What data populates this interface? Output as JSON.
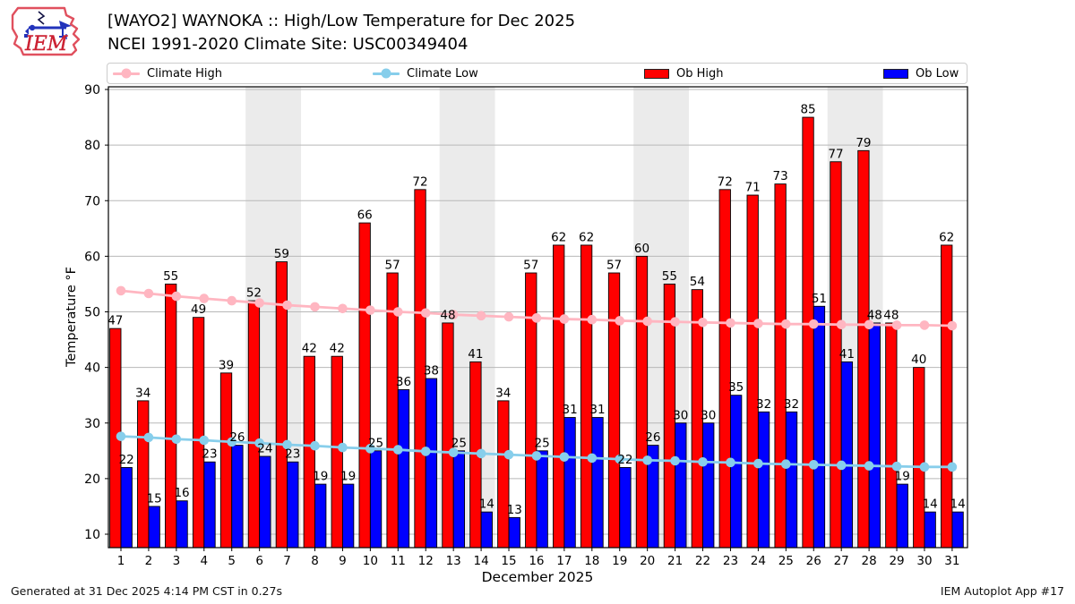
{
  "header": {
    "title_line1": "[WAYO2] WAYNOKA :: High/Low Temperature for Dec 2025",
    "title_line2": "NCEI 1991-2020 Climate Site: USC00349404",
    "logo_text": "IEM"
  },
  "legend": [
    {
      "label": "Climate High",
      "type": "line",
      "color": "#ffb6c1"
    },
    {
      "label": "Climate Low",
      "type": "line",
      "color": "#87ceeb"
    },
    {
      "label": "Ob High",
      "type": "patch",
      "color": "#ff0000"
    },
    {
      "label": "Ob Low",
      "type": "patch",
      "color": "#0000ff"
    }
  ],
  "footer": {
    "left": "Generated at 31 Dec 2025 4:14 PM CST in 0.27s",
    "right": "IEM Autoplot App #17"
  },
  "chart_data": {
    "type": "bar",
    "title": "[WAYO2] WAYNOKA :: High/Low Temperature for Dec 2025",
    "xlabel": "December 2025",
    "ylabel": "Temperature °F",
    "ylim": [
      7.5,
      90.5
    ],
    "yticks": [
      10,
      20,
      30,
      40,
      50,
      60,
      70,
      80,
      90
    ],
    "days": [
      1,
      2,
      3,
      4,
      5,
      6,
      7,
      8,
      9,
      10,
      11,
      12,
      13,
      14,
      15,
      16,
      17,
      18,
      19,
      20,
      21,
      22,
      23,
      24,
      25,
      26,
      27,
      28,
      29,
      30,
      31
    ],
    "weekend_bands": [
      [
        5.5,
        7.5
      ],
      [
        12.5,
        14.5
      ],
      [
        19.5,
        21.5
      ],
      [
        26.5,
        28.5
      ]
    ],
    "grid": true,
    "grid_color": "#b8b8b8",
    "band_color": "#ebebeb",
    "legend_position": "top",
    "series": [
      {
        "name": "Ob High",
        "type": "bar",
        "color": "#ff0000",
        "values": [
          47,
          34,
          55,
          49,
          39,
          52,
          59,
          42,
          42,
          66,
          57,
          72,
          48,
          41,
          34,
          57,
          62,
          62,
          57,
          60,
          55,
          54,
          72,
          71,
          73,
          85,
          77,
          79,
          48,
          40,
          62
        ]
      },
      {
        "name": "Ob Low",
        "type": "bar",
        "color": "#0000ff",
        "values": [
          22,
          15,
          16,
          23,
          26,
          24,
          23,
          19,
          19,
          25,
          36,
          38,
          25,
          14,
          13,
          25,
          31,
          31,
          22,
          26,
          30,
          30,
          35,
          32,
          32,
          51,
          41,
          48,
          19,
          14,
          14
        ]
      },
      {
        "name": "Climate High",
        "type": "line",
        "color": "#ffb6c1",
        "values": [
          53.8,
          53.3,
          52.8,
          52.4,
          52.0,
          51.6,
          51.2,
          50.9,
          50.6,
          50.3,
          50.0,
          49.8,
          49.5,
          49.3,
          49.1,
          48.9,
          48.7,
          48.6,
          48.4,
          48.3,
          48.2,
          48.1,
          48.0,
          47.9,
          47.8,
          47.8,
          47.7,
          47.7,
          47.6,
          47.6,
          47.5
        ]
      },
      {
        "name": "Climate Low",
        "type": "line",
        "color": "#87ceeb",
        "values": [
          27.6,
          27.4,
          27.1,
          26.9,
          26.6,
          26.4,
          26.1,
          25.9,
          25.6,
          25.4,
          25.2,
          24.9,
          24.7,
          24.5,
          24.3,
          24.1,
          23.9,
          23.7,
          23.5,
          23.3,
          23.2,
          23.0,
          22.9,
          22.7,
          22.6,
          22.5,
          22.4,
          22.3,
          22.2,
          22.1,
          22.1
        ]
      }
    ]
  }
}
